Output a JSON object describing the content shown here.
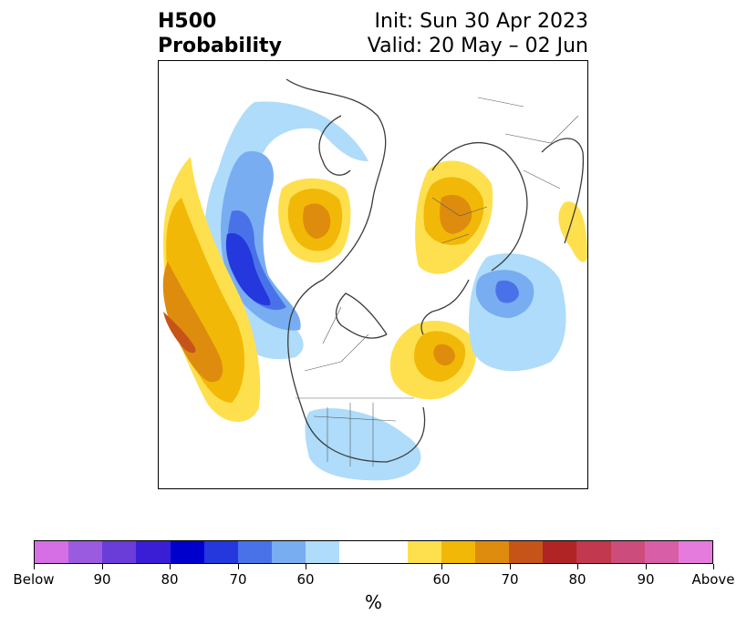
{
  "title": {
    "left_line1": "H500",
    "left_line2": "Probability",
    "right_line1": "Init: Sun 30 Apr 2023",
    "right_line2": "Valid: 20 May – 02 Jun"
  },
  "map": {
    "projection": "north-polar-stereographic",
    "features": [
      "coastlines",
      "country-borders",
      "us-state-borders",
      "canada-province-borders"
    ],
    "anomalies": [
      {
        "region": "North Pacific / Gulf of Alaska",
        "sign": "below",
        "max_level": 80
      },
      {
        "region": "Mid-latitude Pacific (west of trough)",
        "sign": "above",
        "max_level": 70
      },
      {
        "region": "East Siberia / Chukotka",
        "sign": "above",
        "max_level": 70
      },
      {
        "region": "Northern Europe / Scandinavia",
        "sign": "above",
        "max_level": 70
      },
      {
        "region": "Eastern Canada / Labrador",
        "sign": "above",
        "max_level": 65
      },
      {
        "region": "Southeast Europe",
        "sign": "above",
        "max_level": 60
      },
      {
        "region": "Northwest Russia / Barents",
        "sign": "below",
        "max_level": 75
      },
      {
        "region": "Southern United States",
        "sign": "below",
        "max_level": 60
      }
    ]
  },
  "colorbar": {
    "segments": [
      {
        "color": "#d66ee6",
        "label": "Below"
      },
      {
        "color": "#9b5be0"
      },
      {
        "color": "#6a3dd9"
      },
      {
        "color": "#3a1ed6"
      },
      {
        "color": "#0000cc"
      },
      {
        "color": "#2438de"
      },
      {
        "color": "#4a72e8"
      },
      {
        "color": "#78adf2"
      },
      {
        "color": "#aedcfa"
      },
      {
        "color": "#ffffff"
      },
      {
        "color": "#fee04e"
      },
      {
        "color": "#f2b807"
      },
      {
        "color": "#de8c0e"
      },
      {
        "color": "#c65419"
      },
      {
        "color": "#b02425"
      },
      {
        "color": "#c2384e"
      },
      {
        "color": "#cc4d7c"
      },
      {
        "color": "#d95ea8"
      },
      {
        "color": "#e57bdc"
      }
    ],
    "tick_labels": [
      "Below",
      "90",
      "80",
      "70",
      "60",
      "60",
      "70",
      "80",
      "90",
      "Above"
    ],
    "unit": "%"
  }
}
